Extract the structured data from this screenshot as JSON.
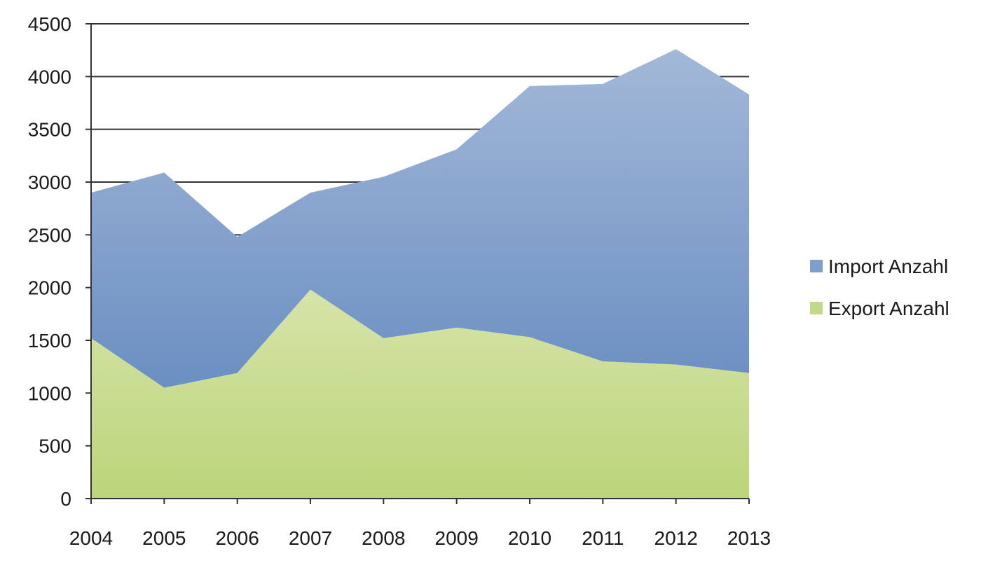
{
  "chart_data": {
    "type": "area",
    "stacked": true,
    "categories": [
      "2004",
      "2005",
      "2006",
      "2007",
      "2008",
      "2009",
      "2010",
      "2011",
      "2012",
      "2013"
    ],
    "series": [
      {
        "name": "Export Anzahl",
        "color": "#c3d98a",
        "values": [
          1520,
          1050,
          1190,
          1980,
          1520,
          1620,
          1530,
          1300,
          1270,
          1190
        ]
      },
      {
        "name": "Import Anzahl",
        "color": "#7f9fcb",
        "values": [
          1380,
          2040,
          1290,
          920,
          1530,
          1690,
          2380,
          2630,
          2990,
          2640
        ]
      }
    ],
    "yticks": [
      "0",
      "500",
      "1000",
      "1500",
      "2000",
      "2500",
      "3000",
      "3500",
      "4000",
      "4500"
    ],
    "ylim": [
      0,
      4500
    ],
    "grid": true,
    "legend": "right",
    "title": "",
    "xlabel": "",
    "ylabel": ""
  }
}
